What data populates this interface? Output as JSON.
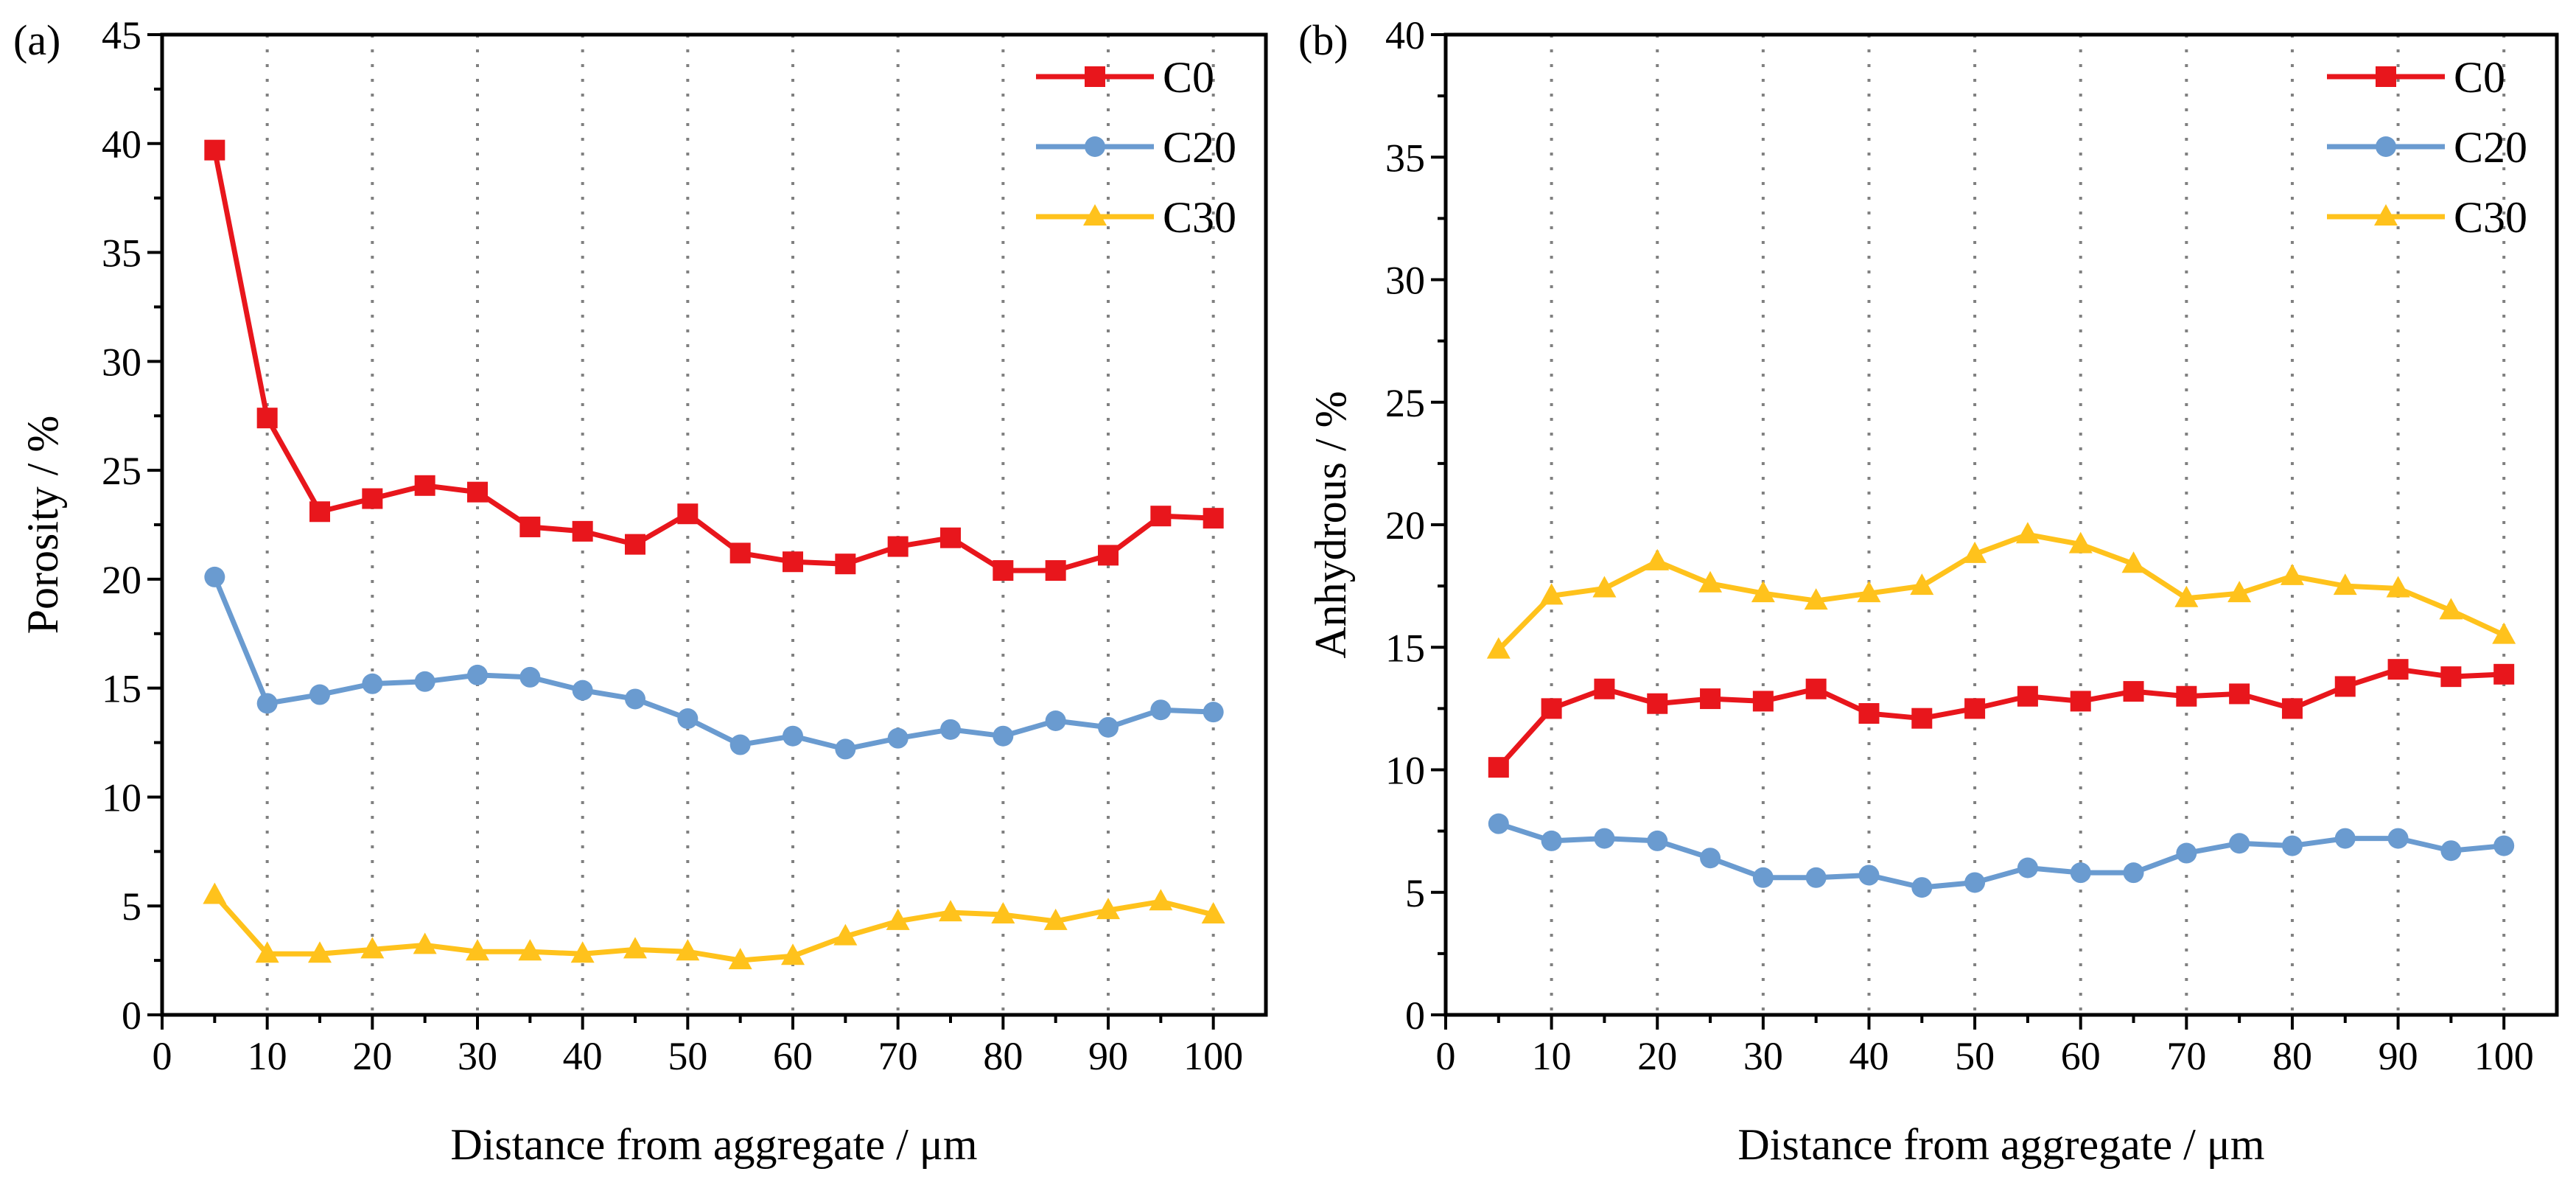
{
  "chart_data": [
    {
      "type": "line",
      "panel_label": "(a)",
      "title": "",
      "xlabel": "Distance from aggregate / μm",
      "ylabel": "Porosity / %",
      "xlim": [
        0,
        105
      ],
      "ylim": [
        0,
        45
      ],
      "xticks": [
        0,
        10,
        20,
        30,
        40,
        50,
        60,
        70,
        80,
        90,
        100
      ],
      "yticks": [
        0,
        5,
        10,
        15,
        20,
        25,
        30,
        35,
        40,
        45
      ],
      "vgrid": [
        10,
        20,
        30,
        40,
        50,
        60,
        70,
        80,
        90,
        100
      ],
      "legend_position": "top-right",
      "x": [
        5,
        10,
        15,
        20,
        25,
        30,
        35,
        40,
        45,
        50,
        55,
        60,
        65,
        70,
        75,
        80,
        85,
        90,
        95,
        100
      ],
      "series": [
        {
          "name": "C0",
          "color": "#e8161c",
          "marker": "square",
          "values": [
            39.7,
            27.4,
            23.1,
            23.7,
            24.3,
            24.0,
            22.4,
            22.2,
            21.6,
            23.0,
            21.2,
            20.8,
            20.7,
            21.5,
            21.9,
            20.4,
            20.4,
            21.1,
            22.9,
            22.8
          ]
        },
        {
          "name": "C20",
          "color": "#6a9bd0",
          "marker": "circle",
          "values": [
            20.1,
            14.3,
            14.7,
            15.2,
            15.3,
            15.6,
            15.5,
            14.9,
            14.5,
            13.6,
            12.4,
            12.8,
            12.2,
            12.7,
            13.1,
            12.8,
            13.5,
            13.2,
            14.0,
            13.9
          ]
        },
        {
          "name": "C30",
          "color": "#ffc21c",
          "marker": "triangle",
          "values": [
            5.5,
            2.8,
            2.8,
            3.0,
            3.2,
            2.9,
            2.9,
            2.8,
            3.0,
            2.9,
            2.5,
            2.7,
            3.6,
            4.3,
            4.7,
            4.6,
            4.3,
            4.8,
            5.2,
            4.6
          ]
        }
      ]
    },
    {
      "type": "line",
      "panel_label": "(b)",
      "title": "",
      "xlabel": "Distance from aggregate / μm",
      "ylabel": "Anhydrous / %",
      "xlim": [
        0,
        105
      ],
      "ylim": [
        0,
        40
      ],
      "xticks": [
        0,
        10,
        20,
        30,
        40,
        50,
        60,
        70,
        80,
        90,
        100
      ],
      "yticks": [
        0,
        5,
        10,
        15,
        20,
        25,
        30,
        35,
        40
      ],
      "vgrid": [
        10,
        20,
        30,
        40,
        50,
        60,
        70,
        80,
        90,
        100
      ],
      "legend_position": "top-right",
      "x": [
        5,
        10,
        15,
        20,
        25,
        30,
        35,
        40,
        45,
        50,
        55,
        60,
        65,
        70,
        75,
        80,
        85,
        90,
        95,
        100
      ],
      "series": [
        {
          "name": "C0",
          "color": "#e8161c",
          "marker": "square",
          "values": [
            10.1,
            12.5,
            13.3,
            12.7,
            12.9,
            12.8,
            13.3,
            12.3,
            12.1,
            12.5,
            13.0,
            12.8,
            13.2,
            13.0,
            13.1,
            12.5,
            13.4,
            14.1,
            13.8,
            13.9
          ]
        },
        {
          "name": "C20",
          "color": "#6a9bd0",
          "marker": "circle",
          "values": [
            7.8,
            7.1,
            7.2,
            7.1,
            6.4,
            5.6,
            5.6,
            5.7,
            5.2,
            5.4,
            6.0,
            5.8,
            5.8,
            6.6,
            7.0,
            6.9,
            7.2,
            7.2,
            6.7,
            6.9
          ]
        },
        {
          "name": "C30",
          "color": "#ffc21c",
          "marker": "triangle",
          "values": [
            14.9,
            17.1,
            17.4,
            18.5,
            17.6,
            17.2,
            16.9,
            17.2,
            17.5,
            18.8,
            19.6,
            19.2,
            18.4,
            17.0,
            17.2,
            17.9,
            17.5,
            17.4,
            16.5,
            15.5
          ]
        }
      ]
    }
  ]
}
